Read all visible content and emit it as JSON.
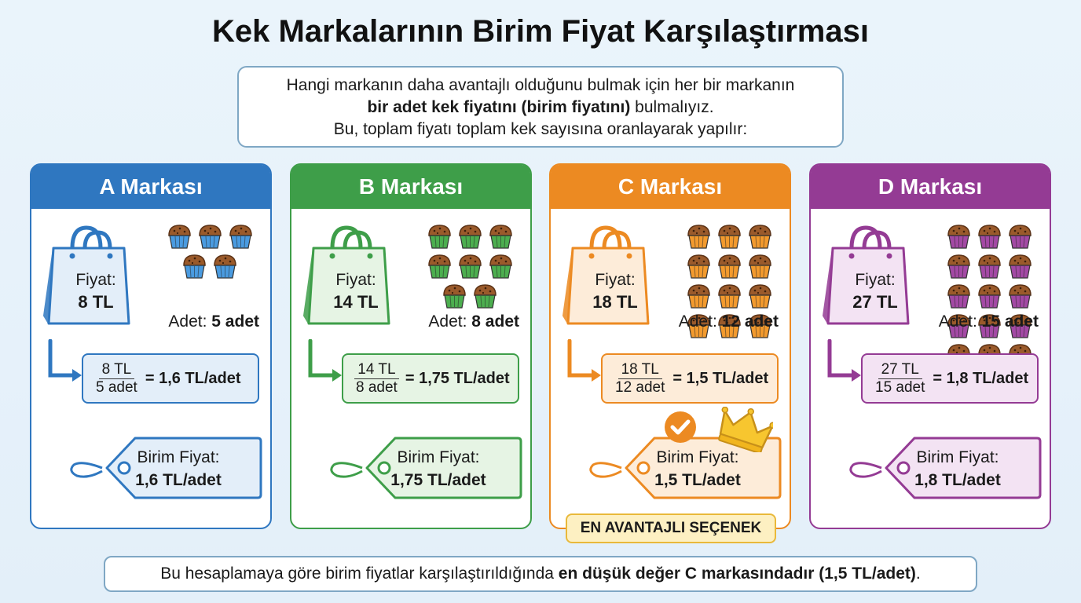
{
  "title": "Kek Markalarının Birim Fiyat Karşılaştırması",
  "intro": {
    "line1": "Hangi markanın daha avantajlı olduğunu bulmak için her bir markanın",
    "line2_bold": "bir adet kek fiyatını (birim fiyatını)",
    "line2_rest": " bulmalıyız.",
    "line3": "Bu, toplam fiyatı toplam kek sayısına oranlayarak yapılır:"
  },
  "price_label": "Fiyat:",
  "count_label": "Adet: ",
  "unit_label": "Birim Fiyat:",
  "brands": [
    {
      "name": "A Markası",
      "price": "8 TL",
      "count": "5 adet",
      "muffins": 5,
      "num": "8 TL",
      "den": "5 adet",
      "result": "= 1,6 TL/adet",
      "unit_price": "1,6 TL/adet",
      "color": "#2f77c0",
      "light": "#e3eef9",
      "cup": "#4a9be0"
    },
    {
      "name": "B Markası",
      "price": "14 TL",
      "count": "8 adet",
      "muffins": 8,
      "num": "14 TL",
      "den": "8 adet",
      "result": "= 1,75 TL/adet",
      "unit_price": "1,75 TL/adet",
      "color": "#3e9e49",
      "light": "#e6f4e4",
      "cup": "#4cae4f"
    },
    {
      "name": "C Markası",
      "price": "18 TL",
      "count": "12 adet",
      "muffins": 12,
      "num": "18 TL",
      "den": "12 adet",
      "result": "= 1,5 TL/adet",
      "unit_price": "1,5 TL/adet",
      "color": "#ec8a22",
      "light": "#fdecd9",
      "cup": "#f29a2e"
    },
    {
      "name": "D Markası",
      "price": "27 TL",
      "count": "15 adet",
      "muffins": 15,
      "num": "27 TL",
      "den": "15 adet",
      "result": "= 1,8 TL/adet",
      "unit_price": "1,8 TL/adet",
      "color": "#943b94",
      "light": "#f3e3f3",
      "cup": "#a349a4"
    }
  ],
  "best_badge": "EN AVANTAJLI SEÇENEK",
  "footer": {
    "text": "Bu hesaplamaya göre birim fiyatlar karşılaştırıldığında ",
    "bold": "en düşük değer C markasındadır (1,5 TL/adet)",
    "end": "."
  }
}
